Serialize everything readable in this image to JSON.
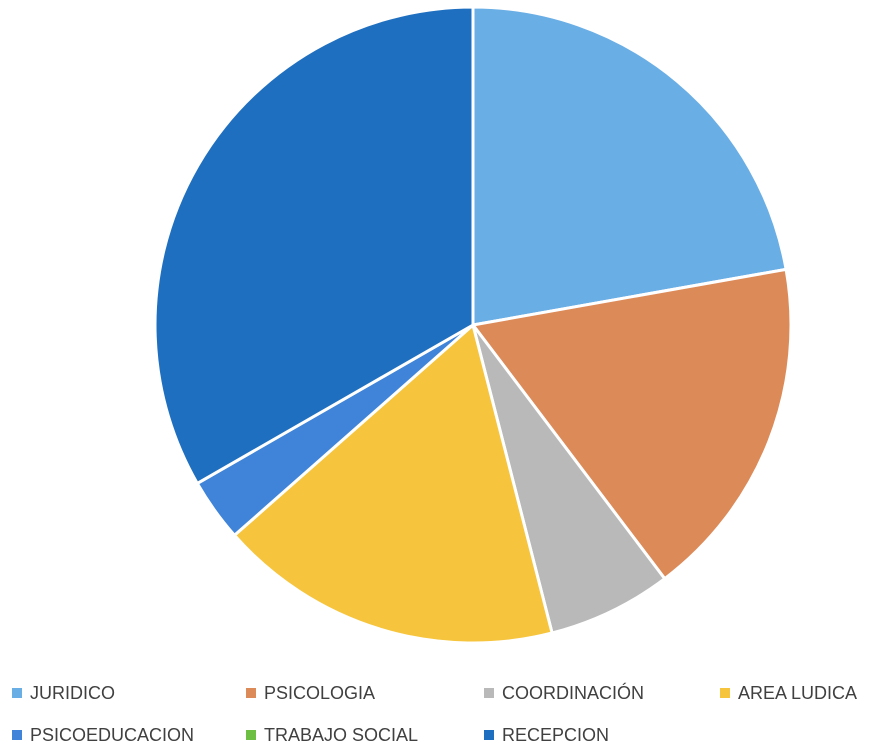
{
  "chart_data": {
    "type": "pie",
    "title": "",
    "start_angle_deg": 0,
    "direction": "clockwise",
    "legend_position": "bottom",
    "slices": [
      {
        "label": "JURIDICO",
        "value": 22.2,
        "color": "#6aaee6"
      },
      {
        "label": "PSICOLOGIA",
        "value": 17.5,
        "color": "#dc8a58"
      },
      {
        "label": "COORDINACIÓN",
        "value": 6.3,
        "color": "#b9b9b9"
      },
      {
        "label": "AREA LUDICA",
        "value": 17.5,
        "color": "#f6c53d"
      },
      {
        "label": "PSICOEDUCACION",
        "value": 3.2,
        "color": "#3f84d8"
      },
      {
        "label": "TRABAJO SOCIAL",
        "value": 0,
        "color": "#6cbf42"
      },
      {
        "label": "RECEPCION",
        "value": 33.3,
        "color": "#1f6fc0"
      }
    ]
  }
}
